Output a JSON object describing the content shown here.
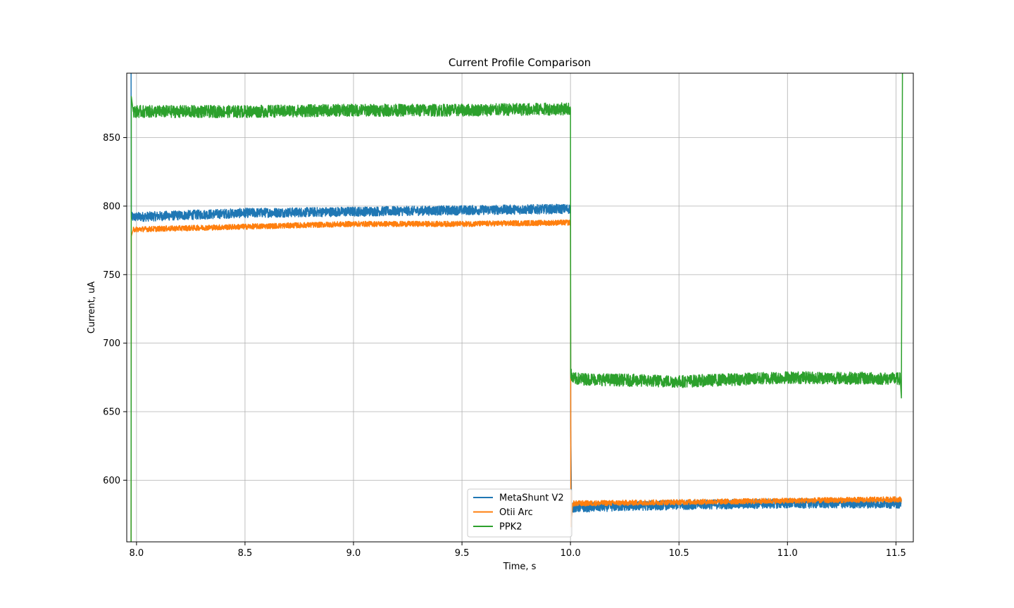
{
  "chart_data": {
    "type": "line",
    "title": "Current Profile Comparison",
    "xlabel": "Time, s",
    "ylabel": "Current, uA",
    "xlim": [
      7.955,
      11.58
    ],
    "ylim": [
      555,
      897
    ],
    "xticks": [
      "8.0",
      "8.5",
      "9.0",
      "9.5",
      "10.0",
      "10.5",
      "11.0",
      "11.5"
    ],
    "yticks": [
      "600",
      "650",
      "700",
      "750",
      "800",
      "850"
    ],
    "grid": true,
    "legend_position": "lower-center",
    "series": [
      {
        "name": "MetaShunt V2",
        "color": "#1f77b4",
        "noise": 3.5,
        "x": [
          7.975,
          7.976,
          7.985,
          8.5,
          9.0,
          9.5,
          10.0,
          10.001,
          10.005,
          10.02,
          10.5,
          11.0,
          11.52,
          11.525
        ],
        "y": [
          897,
          792,
          792,
          795,
          796,
          797,
          798,
          640,
          580,
          580,
          582,
          583,
          583,
          583
        ]
      },
      {
        "name": "Otii Arc",
        "color": "#ff7f0e",
        "noise": 2.0,
        "x": [
          7.975,
          7.976,
          7.985,
          8.5,
          9.0,
          9.5,
          9.995,
          10.0,
          10.002,
          10.01,
          10.5,
          11.0,
          11.52,
          11.525
        ],
        "y": [
          555,
          778,
          783,
          785,
          787,
          787,
          788,
          788,
          566,
          583,
          584,
          585,
          586,
          586
        ]
      },
      {
        "name": "PPK2",
        "color": "#2ca02c",
        "noise": 4.5,
        "x": [
          7.975,
          7.976,
          7.985,
          8.5,
          9.0,
          9.5,
          10.0,
          10.001,
          10.01,
          10.5,
          11.0,
          11.52,
          11.525,
          11.53
        ],
        "y": [
          555,
          880,
          869,
          869,
          870,
          870,
          871,
          678,
          674,
          672,
          675,
          674,
          660,
          897
        ]
      }
    ]
  }
}
